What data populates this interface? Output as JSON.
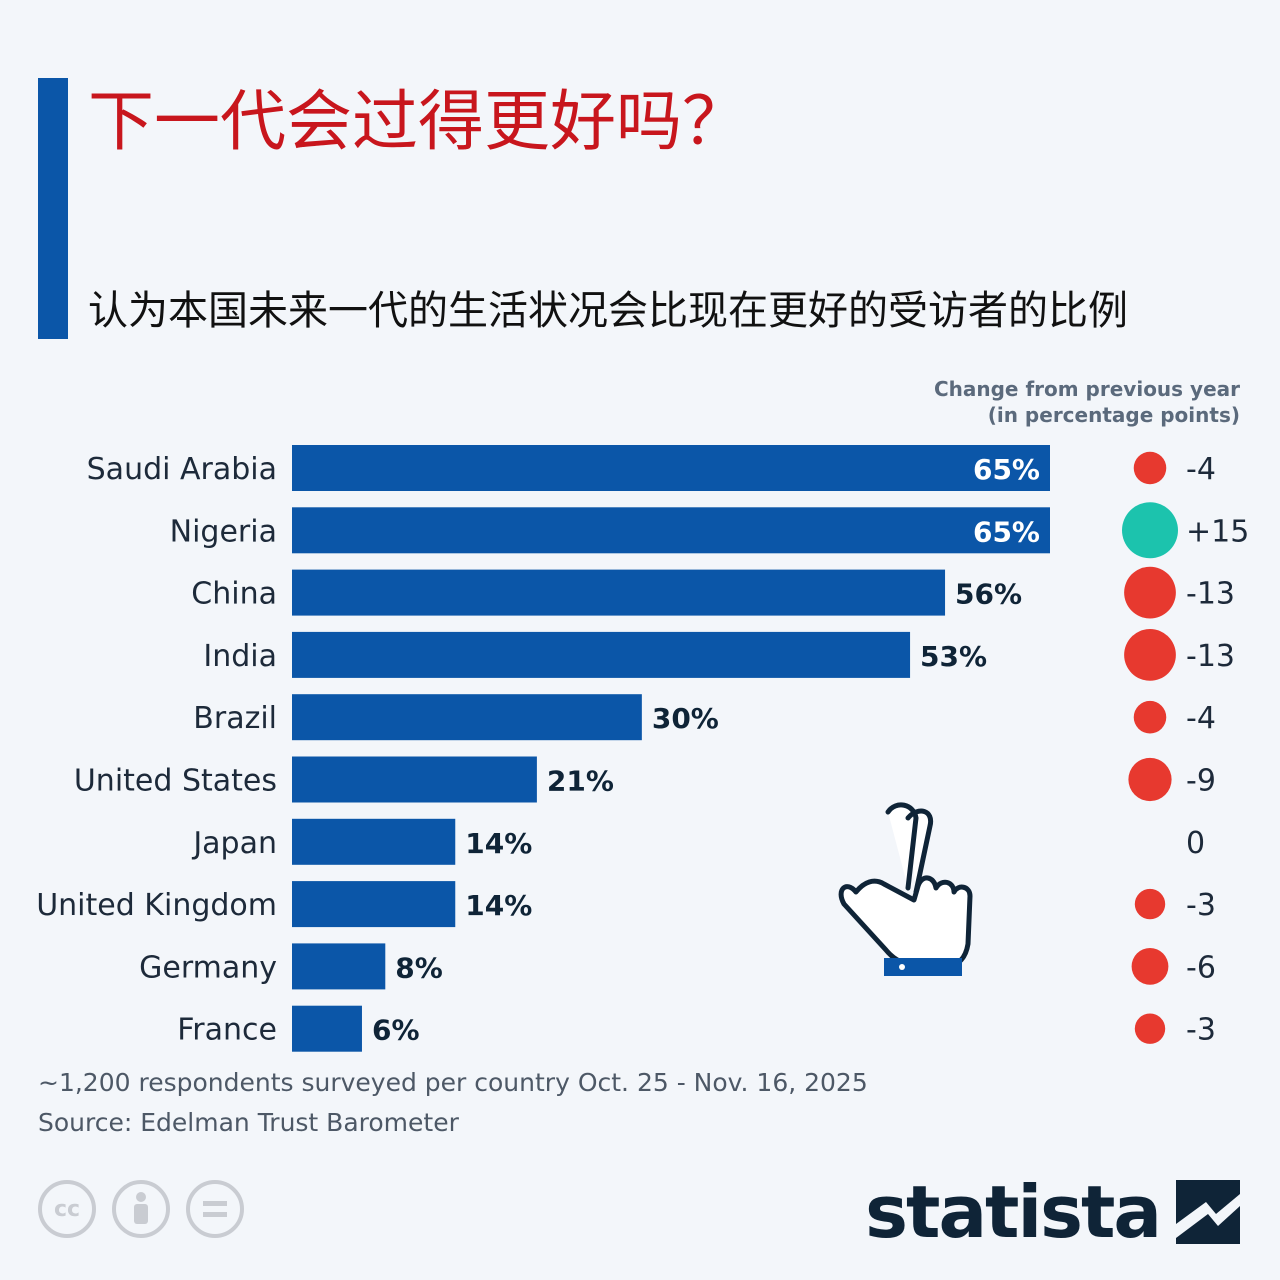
{
  "title": "下一代会过得更好吗？",
  "subtitle": "认为本国未来一代的生活状况会比现在更好的受访者的比例",
  "change_header": {
    "line1": "Change from previous year",
    "line2": "(in percentage points)"
  },
  "footnote": "~1,200 respondents surveyed per country Oct. 25 - Nov. 16, 2025",
  "source": "Source: Edelman Trust Barometer",
  "brand": "statista",
  "license_icons": [
    "cc-icon",
    "attribution-icon",
    "no-derivatives-icon"
  ],
  "colors": {
    "bar": "#0b56a8",
    "positive": "#1cc3ad",
    "negative": "#e7392f",
    "title": "#c8161d"
  },
  "chart_data": {
    "type": "bar",
    "orientation": "horizontal",
    "unit": "%",
    "categories": [
      "Saudi Arabia",
      "Nigeria",
      "China",
      "India",
      "Brazil",
      "United States",
      "Japan",
      "United Kingdom",
      "Germany",
      "France"
    ],
    "values": [
      65,
      65,
      56,
      53,
      30,
      21,
      14,
      14,
      8,
      6
    ],
    "labels": [
      "65%",
      "65%",
      "56%",
      "53%",
      "30%",
      "21%",
      "14%",
      "14%",
      "8%",
      "6%"
    ],
    "change": [
      -4,
      15,
      -13,
      -13,
      -4,
      -9,
      0,
      -3,
      -6,
      -3
    ],
    "change_labels": [
      "-4",
      "+15",
      "-13",
      "-13",
      "-4",
      "-9",
      "0",
      "-3",
      "-6",
      "-3"
    ],
    "xlim": [
      0,
      65
    ]
  }
}
